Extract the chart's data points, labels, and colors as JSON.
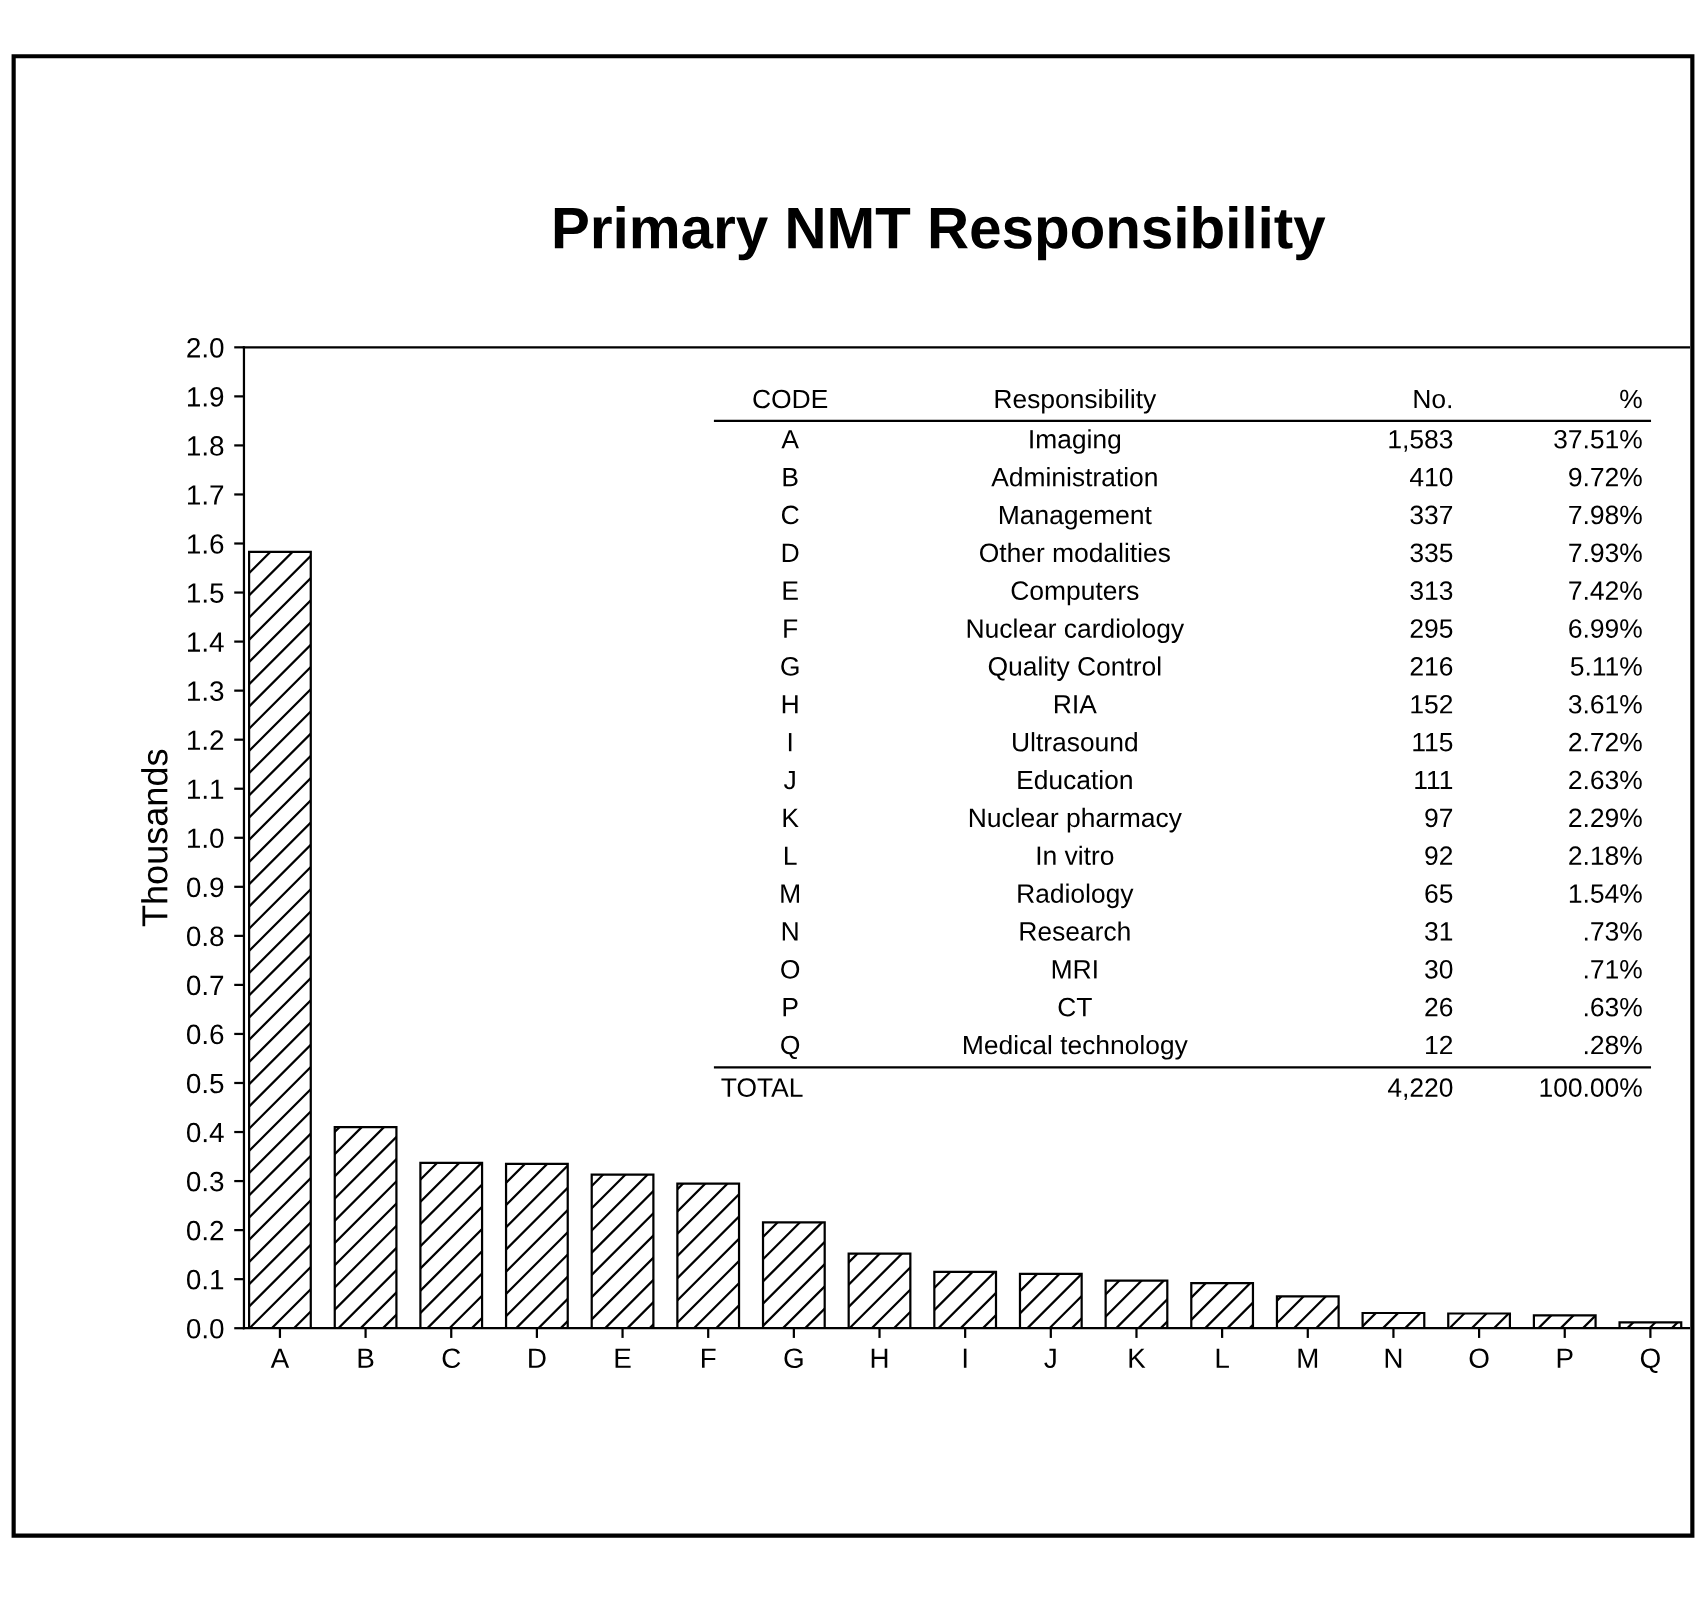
{
  "chart_data": {
    "type": "bar",
    "title": "Primary NMT Responsibility",
    "ylabel": "Thousands",
    "categories": [
      "A",
      "B",
      "C",
      "D",
      "E",
      "F",
      "G",
      "H",
      "I",
      "J",
      "K",
      "L",
      "M",
      "N",
      "O",
      "P",
      "Q"
    ],
    "values": [
      1.583,
      0.41,
      0.337,
      0.335,
      0.313,
      0.295,
      0.216,
      0.152,
      0.115,
      0.111,
      0.097,
      0.092,
      0.065,
      0.031,
      0.03,
      0.026,
      0.012
    ],
    "color": "#000000",
    "ylim": [
      0,
      2.0
    ],
    "yticks": [
      {
        "value": 0,
        "label": "0.0"
      },
      {
        "value": 0.1,
        "label": "0.1"
      },
      {
        "value": 0.2,
        "label": "0.2"
      },
      {
        "value": 0.3,
        "label": "0.3"
      },
      {
        "value": 0.4,
        "label": "0.4"
      },
      {
        "value": 0.5,
        "label": "0.5"
      },
      {
        "value": 0.6,
        "label": "0.6"
      },
      {
        "value": 0.7,
        "label": "0.7"
      },
      {
        "value": 0.8,
        "label": "0.8"
      },
      {
        "value": 0.9,
        "label": "0.9"
      },
      {
        "value": 1.0,
        "label": "1.0"
      },
      {
        "value": 1.1,
        "label": "1.1"
      },
      {
        "value": 1.2,
        "label": "1.2"
      },
      {
        "value": 1.3,
        "label": "1.3"
      },
      {
        "value": 1.4,
        "label": "1.4"
      },
      {
        "value": 1.5,
        "label": "1.5"
      },
      {
        "value": 1.6,
        "label": "1.6"
      },
      {
        "value": 1.7,
        "label": "1.7"
      },
      {
        "value": 1.8,
        "label": "1.8"
      },
      {
        "value": 1.9,
        "label": "1.9"
      },
      {
        "value": 2.0,
        "label": "2.0"
      }
    ],
    "grid": false,
    "annotations": [
      "CODE",
      "Responsibility",
      "No.",
      "%",
      "Imaging",
      "Administration",
      "Management",
      "Other modalities",
      "Computers",
      "Nuclear cardiology",
      "Quality Control",
      "RIA",
      "Ultrasound",
      "Education",
      "Nuclear pharmacy",
      "In vitro",
      "Radiology",
      "Research",
      "MRI",
      "CT",
      "Medical technology",
      "1,583",
      "410",
      "337",
      "335",
      "313",
      "295",
      "216",
      "152",
      "115",
      "111",
      "97",
      "92",
      "65",
      "31",
      "30",
      "26",
      "12",
      "37.51%",
      "9.72%",
      "7.98%",
      "7.93%",
      "7.42%",
      "6.99%",
      "5.11%",
      "3.61%",
      "2.72%",
      "2.63%",
      "2.29%",
      "2.18%",
      "1.54%",
      ".73%",
      ".71%",
      ".63%",
      ".28%",
      "TOTAL",
      "4,220",
      "100.00%"
    ]
  }
}
